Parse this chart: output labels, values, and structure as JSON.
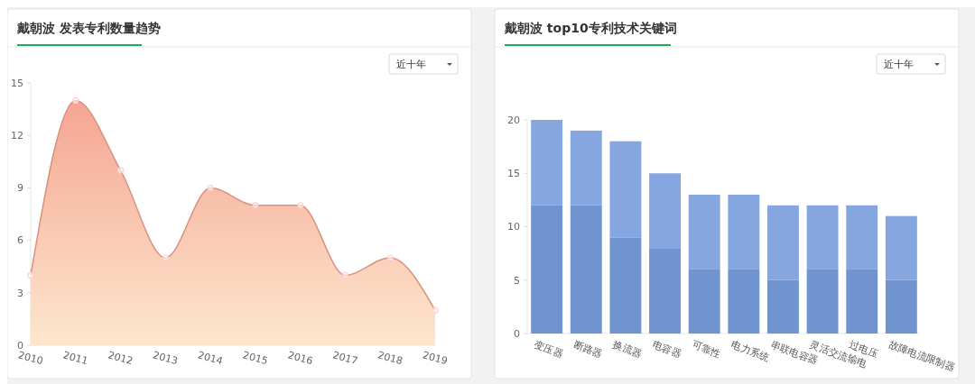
{
  "chart_data": [
    {
      "type": "area",
      "title": "戴朝波 发表专利数量趋势",
      "annotations": [
        "近十年"
      ],
      "x": [
        2010,
        2011,
        2012,
        2013,
        2014,
        2015,
        2016,
        2017,
        2018,
        2019
      ],
      "xlim": [
        2010,
        2019
      ],
      "xticks": [
        2010,
        2011,
        2012,
        2013,
        2014,
        2015,
        2016,
        2017,
        2018,
        2019
      ],
      "series": [
        {
          "color": "#f4a08c",
          "values": [
            4,
            14,
            10,
            5,
            9,
            8,
            8,
            4,
            5,
            2
          ]
        }
      ],
      "ylim": [
        0,
        15
      ],
      "yticks": [
        0,
        3,
        6,
        9,
        12,
        15
      ],
      "marker": "circle",
      "grid": false
    },
    {
      "type": "bar",
      "title": "戴朝波 top10专利技术关键词",
      "annotations": [
        "近十年"
      ],
      "stacked": true,
      "categories": [
        "变压器",
        "断路器",
        "换流器",
        "电容器",
        "可靠性",
        "电力系统",
        "串联电容器",
        "灵活交流输电",
        "过电压",
        "故障电流限制器"
      ],
      "series": [
        {
          "color": "#7094cf",
          "values": [
            12,
            12,
            9,
            8,
            6,
            6,
            5,
            6,
            6,
            5
          ]
        },
        {
          "color": "#86a6e0",
          "values": [
            8,
            7,
            9,
            7,
            7,
            7,
            7,
            6,
            6,
            6
          ]
        }
      ],
      "ylim": [
        0,
        20
      ],
      "yticks": [
        0,
        5,
        10,
        15,
        20
      ],
      "grid": false
    }
  ]
}
